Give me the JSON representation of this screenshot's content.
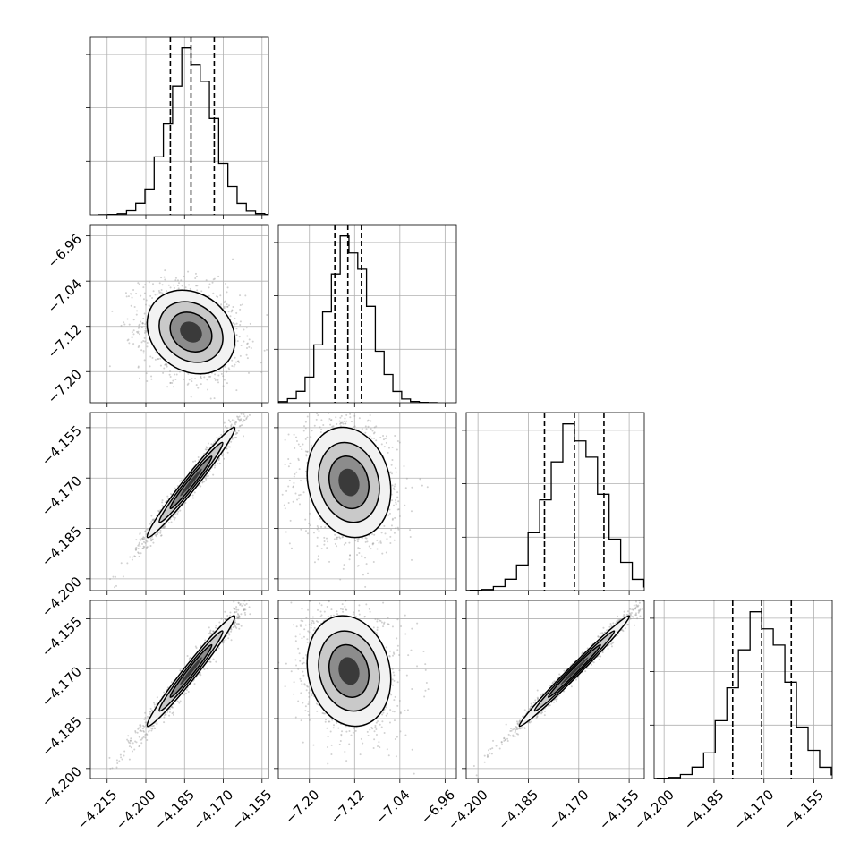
{
  "chart_data": {
    "type": "corner",
    "n_params": 4,
    "param_ranges": [
      [
        -4.2215,
        -4.1525
      ],
      [
        -7.255,
        -6.94
      ],
      [
        -4.2035,
        -4.1505
      ],
      [
        -4.203,
        -4.1495
      ]
    ],
    "ticks": [
      [
        "−4.215",
        "−4.200",
        "−4.185",
        "−4.170",
        "−4.155"
      ],
      [
        "−7.20",
        "−7.12",
        "−7.04",
        "−6.96"
      ],
      [
        "−4.200",
        "−4.185",
        "−4.170",
        "−4.155"
      ],
      [
        "−4.200",
        "−4.185",
        "−4.170",
        "−4.155"
      ]
    ],
    "tick_values": [
      [
        -4.215,
        -4.2,
        -4.185,
        -4.17,
        -4.155
      ],
      [
        -7.2,
        -7.12,
        -7.04,
        -6.96
      ],
      [
        -4.2,
        -4.185,
        -4.17,
        -4.155
      ],
      [
        -4.2,
        -4.185,
        -4.17,
        -4.155
      ]
    ],
    "means": [
      -4.1825,
      -7.13,
      -4.1713,
      -4.1707
    ],
    "sigmas": [
      0.0085,
      0.037,
      0.0082,
      0.0083
    ],
    "quantiles": [
      [
        -4.1905,
        -4.1825,
        -4.1735
      ],
      [
        -7.155,
        -7.132,
        -7.108
      ],
      [
        -4.1802,
        -4.1713,
        -4.1625
      ],
      [
        -4.1794,
        -4.1707,
        -4.1618
      ]
    ],
    "correlations": {
      "0-1": -0.2,
      "0-2": 0.98,
      "0-3": 0.98,
      "1-2": -0.15,
      "1-3": -0.15,
      "2-3": 0.99
    },
    "hist_bins": 20,
    "grid": true,
    "colors": {
      "line": "#000000",
      "grid": "#b0b0b0",
      "points": "#9a9a9a"
    }
  }
}
